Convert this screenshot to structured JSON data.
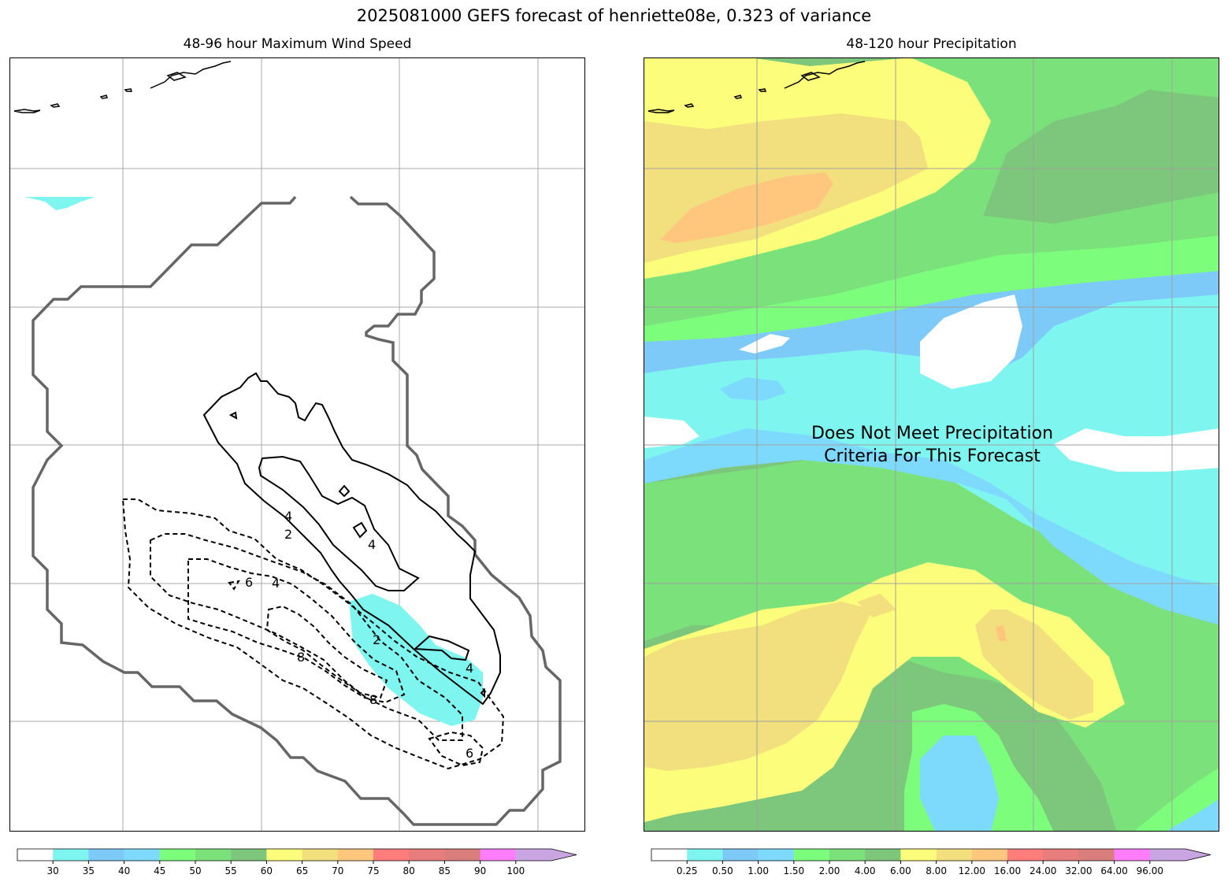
{
  "figure": {
    "title": "2025081000 GEFS forecast of henriette08e, 0.323 of variance"
  },
  "left_panel": {
    "title": "48-96 hour Maximum Wind Speed",
    "contour_labels": [
      "4",
      "2",
      "4",
      "6",
      "4",
      "2",
      "8",
      "8",
      "6",
      "4"
    ],
    "colorbar": {
      "ticks": [
        "30",
        "35",
        "40",
        "45",
        "50",
        "55",
        "60",
        "65",
        "70",
        "75",
        "80",
        "85",
        "90",
        "100"
      ],
      "colors": [
        "#ffffff",
        "#7ff5f0",
        "#7dcaf9",
        "#7ddafd",
        "#7cfd7c",
        "#7be27b",
        "#7dc77d",
        "#fdfd7c",
        "#f2e07f",
        "#fec77d",
        "#fd7d7d",
        "#e87d7d",
        "#d97d7d",
        "#fd7dfd",
        "#c9a6e2"
      ]
    }
  },
  "right_panel": {
    "title": "48-120 hour Precipitation",
    "message_line1": "Does Not Meet Precipitation",
    "message_line2": "Criteria For This Forecast",
    "colorbar": {
      "ticks": [
        "0.25",
        "0.50",
        "1.00",
        "1.50",
        "2.00",
        "4.00",
        "6.00",
        "8.00",
        "12.00",
        "16.00",
        "24.00",
        "32.00",
        "64.00",
        "96.00"
      ],
      "colors": [
        "#ffffff",
        "#7ff5f0",
        "#7dcaf9",
        "#7ddafd",
        "#7cfd7c",
        "#7be27b",
        "#7dc77d",
        "#fdfd7c",
        "#f2e07f",
        "#fec77d",
        "#fd7d7d",
        "#e87d7d",
        "#d97d7d",
        "#fd7dfd",
        "#c9a6e2"
      ]
    }
  }
}
